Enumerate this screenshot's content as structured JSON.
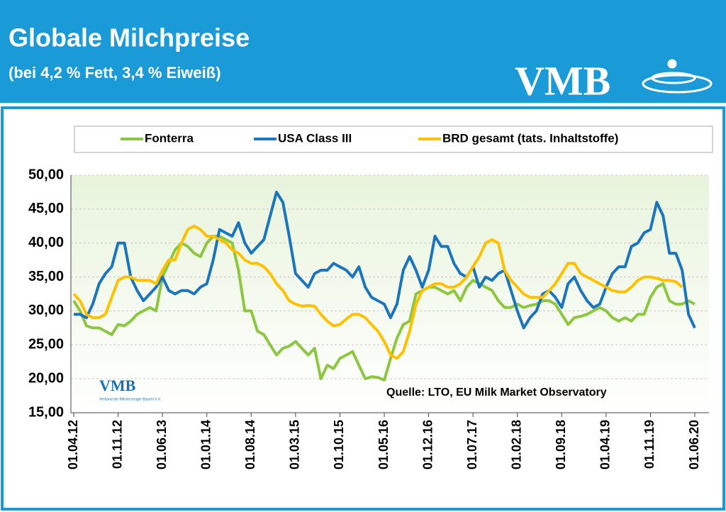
{
  "header": {
    "title": "Globale Milchpreise",
    "subtitle": "(bei 4,2 % Fett, 3,4 % Eiweiß)",
    "logo": "VMB"
  },
  "chart_data": {
    "type": "line",
    "source": "Quelle:  LTO, EU Milk Market Observatory",
    "watermark": "VMB",
    "watermark_caption": "Verband der Milcherzeuger Bayern e.V.",
    "categories": [
      "01.04.12",
      null,
      null,
      null,
      null,
      null,
      null,
      "01.11.12",
      null,
      null,
      null,
      null,
      null,
      null,
      "01.06.13",
      null,
      null,
      null,
      null,
      null,
      null,
      "01.01.14",
      null,
      null,
      null,
      null,
      null,
      null,
      "01.08.14",
      null,
      null,
      null,
      null,
      null,
      null,
      "01.03.15",
      null,
      null,
      null,
      null,
      null,
      null,
      "01.10.15",
      null,
      null,
      null,
      null,
      null,
      null,
      "01.05.16",
      null,
      null,
      null,
      null,
      null,
      null,
      "01.12.16",
      null,
      null,
      null,
      null,
      null,
      null,
      "01.07.17",
      null,
      null,
      null,
      null,
      null,
      null,
      "01.02.18",
      null,
      null,
      null,
      null,
      null,
      null,
      "01.09.18",
      null,
      null,
      null,
      null,
      null,
      null,
      "01.04.19",
      null,
      null,
      null,
      null,
      null,
      null,
      "01.11.19",
      null,
      null,
      null,
      null,
      null,
      null,
      "01.06.20"
    ],
    "series": [
      {
        "name": "Fonterra",
        "color": "#8dc63f",
        "values": [
          31.5,
          30,
          27.8,
          27.5,
          27.5,
          27,
          26.5,
          28,
          27.8,
          28.5,
          29.5,
          30,
          30.5,
          30,
          35,
          37,
          39,
          40,
          39.5,
          38.5,
          38,
          40,
          41,
          41,
          40.5,
          40,
          36,
          30,
          30,
          27,
          26.5,
          25,
          23.5,
          24.5,
          24.8,
          25.5,
          24.5,
          23.5,
          24.5,
          20,
          22,
          21.5,
          23,
          23.5,
          24,
          22,
          20,
          20.3,
          20.2,
          19.8,
          23,
          26,
          28,
          28.5,
          32.5,
          33,
          33.5,
          33.5,
          33,
          32.5,
          33,
          31.5,
          33.5,
          34.5,
          34,
          33.5,
          33,
          31.5,
          30.5,
          30.5,
          31,
          30.5,
          30.8,
          31,
          31.5,
          31.5,
          31,
          29.5,
          28,
          29,
          29.2,
          29.5,
          30,
          30.5,
          30,
          29,
          28.5,
          29,
          28.5,
          29.5,
          29.5,
          32,
          33.5,
          34,
          31.5,
          31,
          31,
          31.5,
          31
        ]
      },
      {
        "name": "USA Class III",
        "color": "#1b75bc",
        "values": [
          29.5,
          29.5,
          29,
          31,
          34,
          35.5,
          36.5,
          40,
          40,
          35,
          33,
          31.5,
          32.5,
          33.5,
          35,
          33,
          32.5,
          33,
          33,
          32.5,
          33.5,
          34,
          37.5,
          42,
          41.5,
          41,
          43,
          40,
          38.5,
          39.5,
          40.5,
          44,
          47.5,
          46,
          41,
          35.5,
          34.5,
          33.5,
          35.5,
          36,
          36,
          37,
          36.5,
          36,
          35,
          36.5,
          33.5,
          32,
          31.5,
          31,
          29,
          31,
          36,
          38,
          36,
          33.5,
          36,
          41,
          39.5,
          39.5,
          37,
          35.5,
          35,
          36.5,
          33.5,
          35,
          34.5,
          35.5,
          36,
          33,
          30,
          27.5,
          29,
          30,
          32.5,
          33,
          32,
          30.5,
          34,
          35,
          33,
          31.5,
          30.5,
          31,
          33.5,
          35.5,
          36.5,
          36.5,
          39.5,
          40,
          41.5,
          42,
          46,
          44,
          38.5,
          38.5,
          36,
          29.5,
          27.5
        ]
      },
      {
        "name": "BRD gesamt (tats. Inhaltstoffe)",
        "color": "#ffc000",
        "values": [
          32.5,
          31.5,
          29.5,
          29,
          29,
          29.5,
          32,
          34.5,
          35,
          35,
          34.5,
          34.5,
          34.5,
          34,
          36,
          37.5,
          37.5,
          40,
          42,
          42.5,
          42,
          41,
          41,
          40.5,
          40,
          39,
          38.5,
          37.5,
          37,
          37,
          36.5,
          35.5,
          34,
          33,
          31.5,
          31,
          30.7,
          30.8,
          30.7,
          29.5,
          28.5,
          27.8,
          28,
          28.8,
          29.5,
          29.5,
          29,
          28,
          27,
          25.5,
          23.5,
          23,
          24,
          27,
          31,
          33,
          33.5,
          34,
          34,
          33.5,
          33.5,
          34,
          35,
          36.5,
          38,
          40,
          40.5,
          40,
          36,
          34.5,
          33.5,
          32.5,
          32,
          32,
          32,
          33,
          34,
          35.5,
          37,
          37,
          35.5,
          35,
          34.5,
          34,
          33.5,
          33,
          32.8,
          32.8,
          33.5,
          34.5,
          35,
          35,
          34.8,
          34.5,
          34.5,
          34.3,
          33.5,
          null,
          null
        ]
      }
    ],
    "ylim": [
      15,
      50
    ],
    "yticks": [
      {
        "value": 15,
        "label": "15,00"
      },
      {
        "value": 20,
        "label": "20,00"
      },
      {
        "value": 25,
        "label": "25,00"
      },
      {
        "value": 30,
        "label": "30,00"
      },
      {
        "value": 35,
        "label": "35,00"
      },
      {
        "value": 40,
        "label": "40,00"
      },
      {
        "value": 45,
        "label": "45,00"
      },
      {
        "value": 50,
        "label": "50,00"
      }
    ],
    "grid": true
  }
}
